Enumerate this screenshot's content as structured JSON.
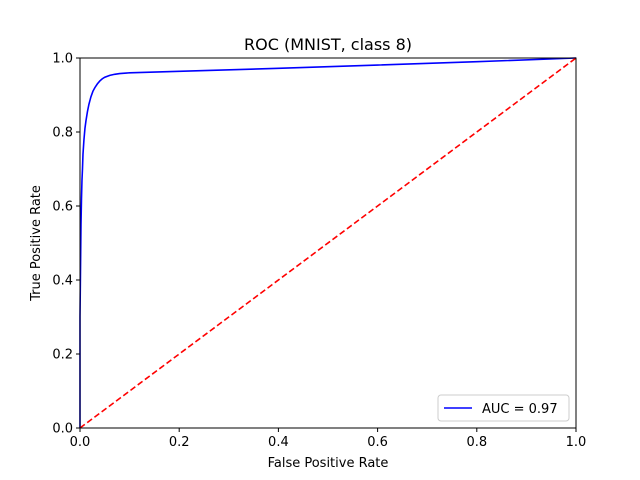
{
  "chart_data": {
    "type": "line",
    "title": "ROC (MNIST, class 8)",
    "xlabel": "False Positive Rate",
    "ylabel": "True Positive Rate",
    "xlim": [
      0,
      1
    ],
    "ylim": [
      0,
      1
    ],
    "x_ticks": [
      "0.0",
      "0.2",
      "0.4",
      "0.6",
      "0.8",
      "1.0"
    ],
    "y_ticks": [
      "0.0",
      "0.2",
      "0.4",
      "0.6",
      "0.8",
      "1.0"
    ],
    "grid": false,
    "legend_position": "lower-right",
    "series": [
      {
        "name": "AUC = 0.97",
        "color": "#0000ff",
        "style": "solid",
        "x": [
          0.0,
          0.0,
          0.002,
          0.003,
          0.004,
          0.005,
          0.006,
          0.008,
          0.01,
          0.012,
          0.015,
          0.018,
          0.022,
          0.026,
          0.03,
          0.035,
          0.04,
          0.045,
          0.05,
          0.06,
          0.07,
          0.08,
          0.1,
          0.2,
          0.4,
          0.6,
          0.8,
          1.0
        ],
        "y": [
          0.0,
          0.3,
          0.55,
          0.62,
          0.67,
          0.7,
          0.74,
          0.78,
          0.81,
          0.83,
          0.855,
          0.875,
          0.895,
          0.91,
          0.92,
          0.93,
          0.938,
          0.944,
          0.948,
          0.953,
          0.956,
          0.958,
          0.96,
          0.964,
          0.972,
          0.981,
          0.99,
          1.0
        ]
      },
      {
        "name": "",
        "color": "#ff0000",
        "style": "dashed",
        "x": [
          0.0,
          1.0
        ],
        "y": [
          0.0,
          1.0
        ]
      }
    ]
  }
}
